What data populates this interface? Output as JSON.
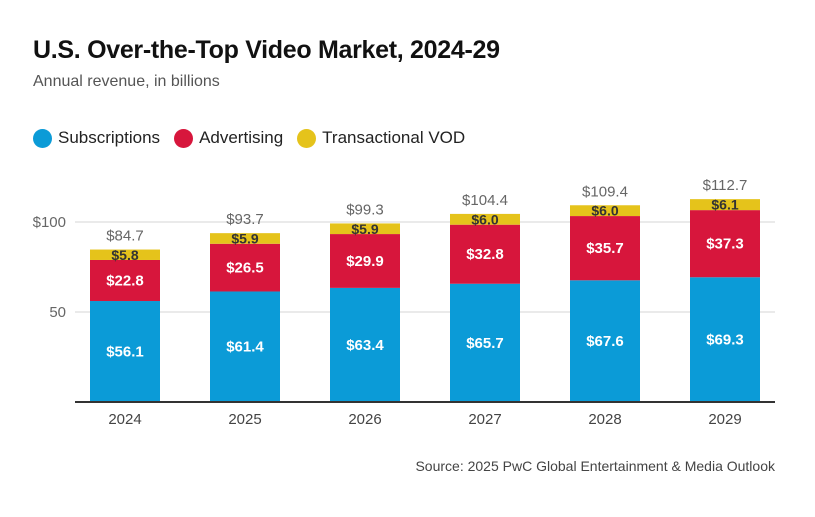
{
  "chart_data": {
    "type": "bar",
    "stacked": true,
    "title": "U.S. Over-the-Top Video Market, 2024-29",
    "subtitle": "Annual revenue, in billions",
    "source": "Source: 2025 PwC Global Entertainment & Media Outlook",
    "categories": [
      "2024",
      "2025",
      "2026",
      "2027",
      "2028",
      "2029"
    ],
    "series": [
      {
        "name": "Subscriptions",
        "color": "#0b9bd7",
        "values": [
          56.1,
          61.4,
          63.4,
          65.7,
          67.6,
          69.3
        ]
      },
      {
        "name": "Advertising",
        "color": "#d7163c",
        "values": [
          22.8,
          26.5,
          29.9,
          32.8,
          35.7,
          37.3
        ]
      },
      {
        "name": "Transactional VOD",
        "color": "#e5c31b",
        "values": [
          5.8,
          5.9,
          5.9,
          6.0,
          6.0,
          6.1
        ]
      }
    ],
    "totals": [
      84.7,
      93.7,
      99.3,
      104.4,
      109.4,
      112.7
    ],
    "yticks": [
      {
        "value": 50,
        "label": "50"
      },
      {
        "value": 100,
        "label": "$100"
      }
    ],
    "ylim": [
      0,
      125
    ],
    "grid": true,
    "legend": "top-left"
  }
}
